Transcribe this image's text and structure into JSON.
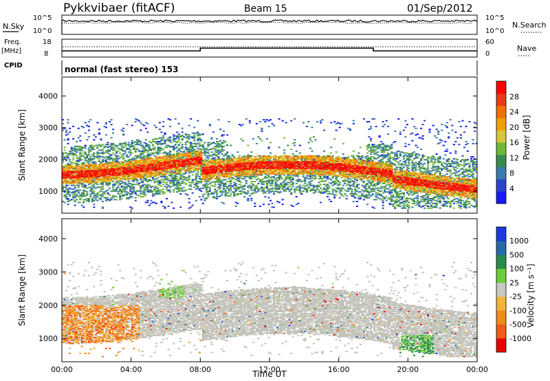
{
  "header": {
    "station": "Pykkvibaer (fitACF)",
    "beam": "Beam 15",
    "date": "01/Sep/2012"
  },
  "status_panels": {
    "nsky_label": "N.Sky",
    "nsky_ticks": [
      "10^5",
      "10^0"
    ],
    "nsearch_ticks": [
      "10^5",
      "10^0"
    ],
    "nsearch_label": "N.Search",
    "freq_label_line1": "Freq.",
    "freq_label_line2": "[MHz]",
    "freq_ticks": [
      "18",
      "8"
    ],
    "nave_ticks": [
      "60",
      "0"
    ],
    "nave_label": "Nave",
    "cpid_label": "CPID",
    "cpid_text": "normal (fast stereo) 153"
  },
  "colors": {
    "power": [
      "#1919ff",
      "#2a44c8",
      "#3a7aa8",
      "#3a8a50",
      "#6fb83a",
      "#d6c83a",
      "#f2a000",
      "#f07000",
      "#e83a1a",
      "#ff0000"
    ],
    "velocity": [
      "#1a3adc",
      "#2a6aa8",
      "#2a8a4a",
      "#6ccc3a",
      "#c8c8c0",
      "#f0b43a",
      "#f08a1a",
      "#f05a1a",
      "#e80000"
    ],
    "gray": "#c3c3bb"
  },
  "chart_data": [
    {
      "type": "heatmap",
      "title": "Power",
      "xlabel": "",
      "ylabel": "Slant Range [km]",
      "x_ticks": [
        "00:00",
        "04:00",
        "08:00",
        "12:00",
        "16:00",
        "20:00",
        "00:00"
      ],
      "y_ticks": [
        "1000",
        "2000",
        "3000",
        "4000"
      ],
      "x_range_hours": [
        0,
        24
      ],
      "y_range_km": [
        300,
        4600
      ],
      "colorbar": {
        "label": "Power [dB]",
        "ticks": [
          "4",
          "8",
          "12",
          "16",
          "20",
          "24",
          "28"
        ],
        "range": [
          0,
          32
        ]
      },
      "bands": [
        {
          "name": "main echo band",
          "x_hours": [
            0,
            24
          ],
          "y_km": [
            900,
            2800
          ],
          "peak_db": 30
        }
      ]
    },
    {
      "type": "heatmap",
      "title": "Velocity",
      "xlabel": "Time UT",
      "ylabel": "Slant Range [km]",
      "x_ticks": [
        "00:00",
        "04:00",
        "08:00",
        "12:00",
        "16:00",
        "20:00",
        "00:00"
      ],
      "y_ticks": [
        "1000",
        "2000",
        "3000",
        "4000"
      ],
      "x_range_hours": [
        0,
        24
      ],
      "y_range_km": [
        300,
        4600
      ],
      "colorbar": {
        "label": "Velocity [m s⁻¹]",
        "ticks": [
          "1000",
          "500",
          "100",
          "25",
          "-25",
          "-100",
          "-500",
          "-1000"
        ]
      }
    }
  ]
}
